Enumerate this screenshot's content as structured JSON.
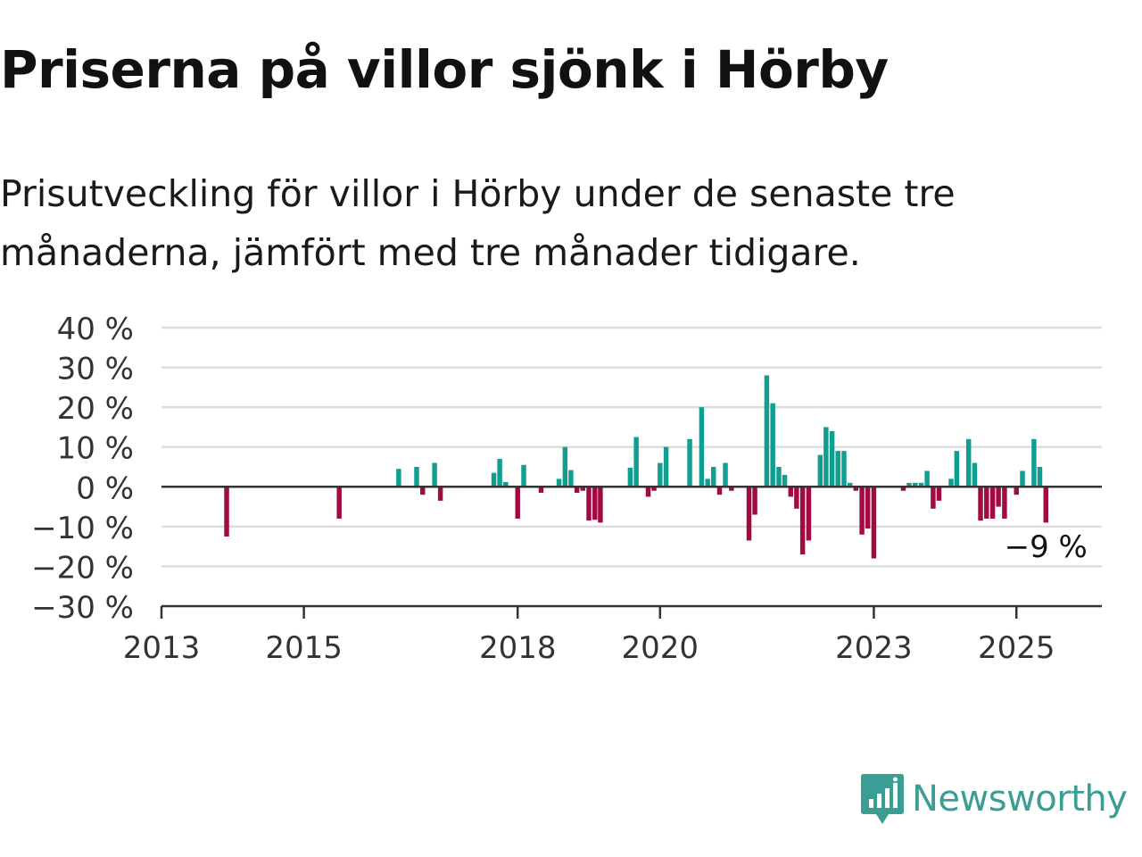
{
  "title": "Priserna på villor sjönk i Hörby",
  "subtitle": "Prisutveckling för villor i Hörby under de senaste tre månaderna, jämfört med tre månader tidigare.",
  "brand": {
    "name": "Newsworthy",
    "color": "#3a9e94",
    "icon": "newsworthy-chart-bubble-icon"
  },
  "colors": {
    "positive": "#0f9e8f",
    "negative": "#a10a43",
    "grid": "#dddddd",
    "axis": "#333333"
  },
  "chart_data": {
    "type": "bar",
    "title": "Priserna på villor sjönk i Hörby",
    "ylabel": "",
    "xlabel": "",
    "ylim": [
      -30,
      40
    ],
    "xlim": [
      "2013-01-01",
      "2026-03-15"
    ],
    "yticks": [
      40,
      30,
      20,
      10,
      0,
      -10,
      -20,
      -30
    ],
    "ytick_labels": [
      "40 %",
      "30 %",
      "20 %",
      "10 %",
      "0 %",
      "−10 %",
      "−20 %",
      "−30 %"
    ],
    "xticks": [
      "2013-01-01",
      "2015-01-01",
      "2018-01-01",
      "2020-01-01",
      "2023-01-01",
      "2025-01-01"
    ],
    "xtick_labels": [
      "2013",
      "2015",
      "2018",
      "2020",
      "2023",
      "2025"
    ],
    "grid": true,
    "unit": "%",
    "annotation": {
      "date": "2025-07-01",
      "text": "−9 %"
    },
    "series": [
      {
        "points": [
          {
            "date": "2013-12-01",
            "value": -12.5
          },
          {
            "date": "2015-07-01",
            "value": -8
          },
          {
            "date": "2016-05-01",
            "value": 4.5
          },
          {
            "date": "2016-08-01",
            "value": 5
          },
          {
            "date": "2016-09-01",
            "value": -2
          },
          {
            "date": "2016-11-01",
            "value": 6
          },
          {
            "date": "2016-12-01",
            "value": -3.5
          },
          {
            "date": "2017-09-01",
            "value": 3.5
          },
          {
            "date": "2017-10-01",
            "value": 7
          },
          {
            "date": "2017-11-01",
            "value": 1.2
          },
          {
            "date": "2018-01-01",
            "value": -8
          },
          {
            "date": "2018-02-01",
            "value": 5.5
          },
          {
            "date": "2018-05-01",
            "value": -1.5
          },
          {
            "date": "2018-08-01",
            "value": 2
          },
          {
            "date": "2018-09-01",
            "value": 10
          },
          {
            "date": "2018-10-01",
            "value": 4.2
          },
          {
            "date": "2018-11-01",
            "value": -1.5
          },
          {
            "date": "2018-12-01",
            "value": -1
          },
          {
            "date": "2019-01-01",
            "value": -8.5
          },
          {
            "date": "2019-02-01",
            "value": -8.3
          },
          {
            "date": "2019-03-01",
            "value": -9
          },
          {
            "date": "2019-08-01",
            "value": 4.8
          },
          {
            "date": "2019-09-01",
            "value": 12.5
          },
          {
            "date": "2019-11-01",
            "value": -2.5
          },
          {
            "date": "2019-12-01",
            "value": -1
          },
          {
            "date": "2020-01-01",
            "value": 6
          },
          {
            "date": "2020-02-01",
            "value": 10
          },
          {
            "date": "2020-06-01",
            "value": 12
          },
          {
            "date": "2020-08-01",
            "value": 20
          },
          {
            "date": "2020-09-01",
            "value": 2
          },
          {
            "date": "2020-10-01",
            "value": 5
          },
          {
            "date": "2020-11-01",
            "value": -2
          },
          {
            "date": "2020-12-01",
            "value": 6
          },
          {
            "date": "2021-01-01",
            "value": -1
          },
          {
            "date": "2021-04-01",
            "value": -13.5
          },
          {
            "date": "2021-05-01",
            "value": -7
          },
          {
            "date": "2021-07-01",
            "value": 28
          },
          {
            "date": "2021-08-01",
            "value": 21
          },
          {
            "date": "2021-09-01",
            "value": 5
          },
          {
            "date": "2021-10-01",
            "value": 3
          },
          {
            "date": "2021-11-01",
            "value": -2.5
          },
          {
            "date": "2021-12-01",
            "value": -5.5
          },
          {
            "date": "2022-01-01",
            "value": -17
          },
          {
            "date": "2022-02-01",
            "value": -13.5
          },
          {
            "date": "2022-04-01",
            "value": 8
          },
          {
            "date": "2022-05-01",
            "value": 15
          },
          {
            "date": "2022-06-01",
            "value": 14
          },
          {
            "date": "2022-07-01",
            "value": 9
          },
          {
            "date": "2022-08-01",
            "value": 9
          },
          {
            "date": "2022-09-01",
            "value": 1
          },
          {
            "date": "2022-10-01",
            "value": -1
          },
          {
            "date": "2022-11-01",
            "value": -12
          },
          {
            "date": "2022-12-01",
            "value": -10.5
          },
          {
            "date": "2023-01-01",
            "value": -18
          },
          {
            "date": "2023-06-01",
            "value": -1
          },
          {
            "date": "2023-07-01",
            "value": 1
          },
          {
            "date": "2023-08-01",
            "value": 1
          },
          {
            "date": "2023-09-01",
            "value": 1
          },
          {
            "date": "2023-10-01",
            "value": 4
          },
          {
            "date": "2023-11-01",
            "value": -5.5
          },
          {
            "date": "2023-12-01",
            "value": -3.5
          },
          {
            "date": "2024-02-01",
            "value": 2
          },
          {
            "date": "2024-03-01",
            "value": 9
          },
          {
            "date": "2024-05-01",
            "value": 12
          },
          {
            "date": "2024-06-01",
            "value": 6
          },
          {
            "date": "2024-07-01",
            "value": -8.5
          },
          {
            "date": "2024-08-01",
            "value": -8
          },
          {
            "date": "2024-09-01",
            "value": -8
          },
          {
            "date": "2024-10-01",
            "value": -5
          },
          {
            "date": "2024-11-01",
            "value": -8
          },
          {
            "date": "2025-01-01",
            "value": -2
          },
          {
            "date": "2025-02-01",
            "value": 4
          },
          {
            "date": "2025-04-01",
            "value": 12
          },
          {
            "date": "2025-05-01",
            "value": 5
          },
          {
            "date": "2025-06-01",
            "value": -9
          }
        ]
      }
    ]
  }
}
